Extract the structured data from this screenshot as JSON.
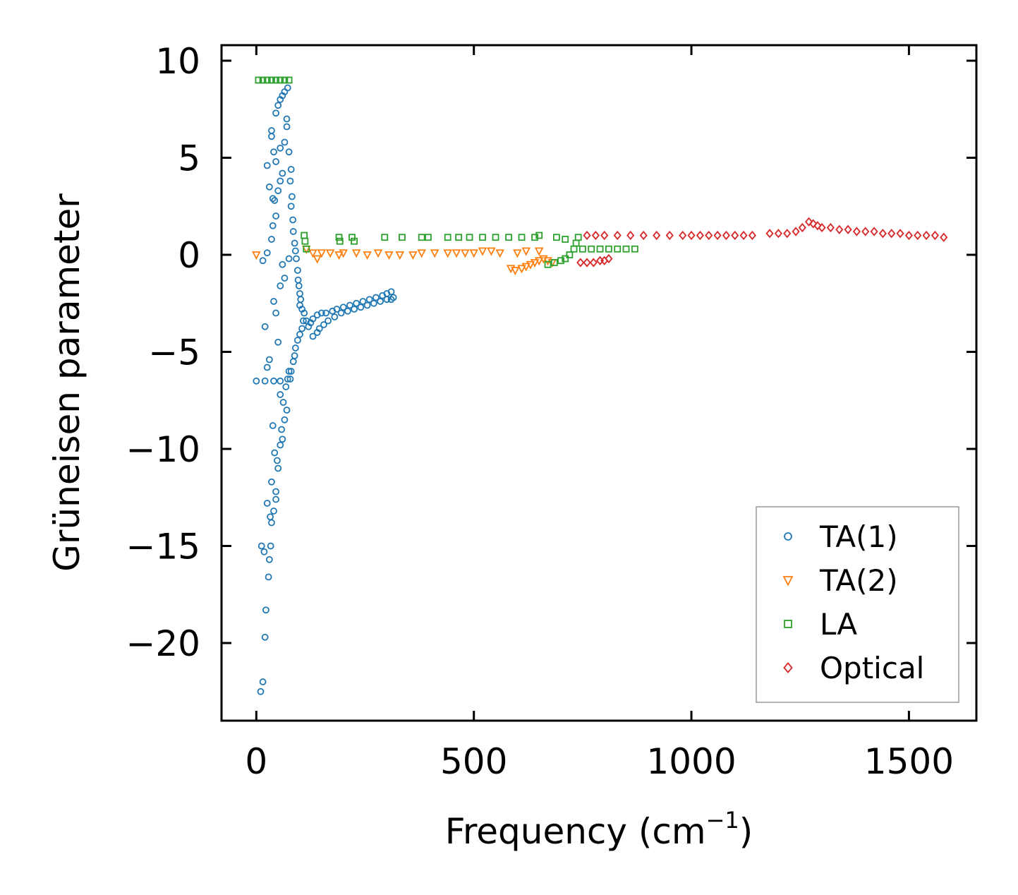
{
  "chart_data": {
    "type": "scatter",
    "xlabel": "Frequency (cm",
    "xlabel_sup": "−1",
    "xlabel_end": ")",
    "ylabel": "Grüneisen parameter",
    "xlim": [
      -80,
      1655
    ],
    "ylim": [
      -24,
      10.8
    ],
    "xticks": [
      0,
      500,
      1000,
      1500
    ],
    "xtick_labels": [
      "0",
      "500",
      "1000",
      "1500"
    ],
    "yticks": [
      10,
      5,
      0,
      -5,
      -10,
      -15,
      -20
    ],
    "ytick_labels": [
      "10",
      "5",
      "0",
      "−5",
      "−10",
      "−15",
      "−20"
    ],
    "legend_position": "lower-right",
    "series": [
      {
        "name": "TA(1)",
        "marker": "circle",
        "color": "#1f77b4",
        "points": [
          [
            0,
            -6.5
          ],
          [
            20,
            -6.5
          ],
          [
            40,
            -6.5
          ],
          [
            55,
            -6.5
          ],
          [
            10,
            -22.5
          ],
          [
            15,
            -22.0
          ],
          [
            20,
            -19.7
          ],
          [
            22,
            -18.3
          ],
          [
            28,
            -16.6
          ],
          [
            30,
            -15.7
          ],
          [
            33,
            -15.0
          ],
          [
            12,
            -15.0
          ],
          [
            18,
            -15.3
          ],
          [
            35,
            -13.8
          ],
          [
            32,
            -13.5
          ],
          [
            40,
            -13.2
          ],
          [
            25,
            -12.8
          ],
          [
            45,
            -12.6
          ],
          [
            45,
            -12.2
          ],
          [
            35,
            -11.7
          ],
          [
            50,
            -11.0
          ],
          [
            48,
            -10.6
          ],
          [
            42,
            -10.2
          ],
          [
            55,
            -9.8
          ],
          [
            60,
            -9.5
          ],
          [
            58,
            -9.0
          ],
          [
            38,
            -8.8
          ],
          [
            65,
            -8.5
          ],
          [
            70,
            -8.0
          ],
          [
            62,
            -7.6
          ],
          [
            55,
            -7.2
          ],
          [
            68,
            -6.8
          ],
          [
            72,
            -6.4
          ],
          [
            75,
            -6.0
          ],
          [
            25,
            -5.8
          ],
          [
            30,
            -5.4
          ],
          [
            20,
            -3.7
          ],
          [
            45,
            -3.0
          ],
          [
            40,
            -2.4
          ],
          [
            50,
            -4.5
          ],
          [
            55,
            -1.6
          ],
          [
            65,
            -1.2
          ],
          [
            60,
            -0.5
          ],
          [
            75,
            -0.2
          ],
          [
            15,
            -0.3
          ],
          [
            25,
            0.1
          ],
          [
            35,
            0.8
          ],
          [
            38,
            1.5
          ],
          [
            45,
            2.0
          ],
          [
            42,
            2.8
          ],
          [
            38,
            2.9
          ],
          [
            30,
            3.5
          ],
          [
            50,
            3.3
          ],
          [
            55,
            3.8
          ],
          [
            60,
            4.2
          ],
          [
            25,
            4.6
          ],
          [
            45,
            4.8
          ],
          [
            40,
            5.3
          ],
          [
            55,
            5.5
          ],
          [
            65,
            5.8
          ],
          [
            35,
            6.1
          ],
          [
            35,
            6.4
          ],
          [
            70,
            6.6
          ],
          [
            70,
            7.0
          ],
          [
            45,
            7.3
          ],
          [
            50,
            7.7
          ],
          [
            55,
            8.0
          ],
          [
            60,
            8.2
          ],
          [
            65,
            8.4
          ],
          [
            72,
            8.6
          ],
          [
            75,
            5.3
          ],
          [
            80,
            4.4
          ],
          [
            78,
            3.8
          ],
          [
            82,
            3.0
          ],
          [
            80,
            2.5
          ],
          [
            84,
            1.8
          ],
          [
            85,
            1.2
          ],
          [
            88,
            0.6
          ],
          [
            90,
            0.2
          ],
          [
            92,
            -0.2
          ],
          [
            95,
            -0.8
          ],
          [
            96,
            -1.3
          ],
          [
            98,
            -1.6
          ],
          [
            100,
            -2.0
          ],
          [
            102,
            -2.3
          ],
          [
            100,
            -2.6
          ],
          [
            105,
            -2.8
          ],
          [
            110,
            -3.0
          ],
          [
            108,
            -3.4
          ],
          [
            105,
            -3.8
          ],
          [
            100,
            -4.1
          ],
          [
            95,
            -4.4
          ],
          [
            90,
            -4.8
          ],
          [
            88,
            -5.2
          ],
          [
            85,
            -5.5
          ],
          [
            80,
            -6.0
          ],
          [
            78,
            -6.4
          ],
          [
            115,
            -3.4
          ],
          [
            120,
            -3.7
          ],
          [
            125,
            -3.5
          ],
          [
            130,
            -3.3
          ],
          [
            140,
            -3.1
          ],
          [
            150,
            -3.0
          ],
          [
            160,
            -3.0
          ],
          [
            175,
            -2.9
          ],
          [
            185,
            -2.8
          ],
          [
            200,
            -2.7
          ],
          [
            215,
            -2.6
          ],
          [
            230,
            -2.5
          ],
          [
            245,
            -2.4
          ],
          [
            260,
            -2.3
          ],
          [
            275,
            -2.2
          ],
          [
            290,
            -2.1
          ],
          [
            300,
            -2.0
          ],
          [
            310,
            -1.9
          ],
          [
            315,
            -2.2
          ],
          [
            130,
            -4.2
          ],
          [
            140,
            -4.0
          ],
          [
            145,
            -3.8
          ],
          [
            155,
            -3.6
          ],
          [
            165,
            -3.4
          ],
          [
            180,
            -3.2
          ],
          [
            195,
            -3.0
          ],
          [
            210,
            -2.9
          ],
          [
            225,
            -2.8
          ],
          [
            240,
            -2.7
          ],
          [
            255,
            -2.6
          ],
          [
            270,
            -2.5
          ],
          [
            285,
            -2.4
          ],
          [
            300,
            -2.3
          ],
          [
            310,
            -2.3
          ]
        ]
      },
      {
        "name": "TA(2)",
        "marker": "triangle-down",
        "color": "#ff7f0e",
        "points": [
          [
            0,
            0.0
          ],
          [
            115,
            0.3
          ],
          [
            130,
            0.1
          ],
          [
            140,
            -0.2
          ],
          [
            150,
            0.1
          ],
          [
            170,
            0.1
          ],
          [
            190,
            0.0
          ],
          [
            200,
            0.1
          ],
          [
            230,
            0.1
          ],
          [
            255,
            0.0
          ],
          [
            280,
            0.1
          ],
          [
            305,
            0.0
          ],
          [
            330,
            0.0
          ],
          [
            360,
            0.0
          ],
          [
            380,
            0.1
          ],
          [
            410,
            0.1
          ],
          [
            440,
            0.1
          ],
          [
            460,
            0.1
          ],
          [
            480,
            0.1
          ],
          [
            500,
            0.1
          ],
          [
            520,
            0.2
          ],
          [
            540,
            0.2
          ],
          [
            560,
            0.1
          ],
          [
            600,
            0.1
          ],
          [
            620,
            0.2
          ],
          [
            650,
            0.2
          ],
          [
            585,
            -0.7
          ],
          [
            595,
            -0.8
          ],
          [
            610,
            -0.7
          ],
          [
            620,
            -0.6
          ],
          [
            630,
            -0.5
          ],
          [
            640,
            -0.4
          ],
          [
            650,
            -0.3
          ],
          [
            660,
            -0.2
          ],
          [
            670,
            -0.3
          ],
          [
            680,
            -0.4
          ]
        ]
      },
      {
        "name": "LA",
        "marker": "square",
        "color": "#2ca02c",
        "points": [
          [
            5,
            9.0
          ],
          [
            15,
            9.0
          ],
          [
            25,
            9.0
          ],
          [
            35,
            9.0
          ],
          [
            45,
            9.0
          ],
          [
            55,
            9.0
          ],
          [
            65,
            9.0
          ],
          [
            75,
            9.0
          ],
          [
            110,
            1.0
          ],
          [
            112,
            0.7
          ],
          [
            115,
            0.3
          ],
          [
            190,
            0.9
          ],
          [
            192,
            0.7
          ],
          [
            220,
            0.9
          ],
          [
            225,
            0.7
          ],
          [
            295,
            0.9
          ],
          [
            335,
            0.9
          ],
          [
            380,
            0.9
          ],
          [
            395,
            0.9
          ],
          [
            440,
            0.9
          ],
          [
            465,
            0.9
          ],
          [
            490,
            0.9
          ],
          [
            520,
            0.9
          ],
          [
            550,
            0.9
          ],
          [
            580,
            0.9
          ],
          [
            610,
            0.9
          ],
          [
            640,
            0.9
          ],
          [
            650,
            1.0
          ],
          [
            690,
            0.9
          ],
          [
            710,
            0.8
          ],
          [
            670,
            -0.5
          ],
          [
            685,
            -0.4
          ],
          [
            700,
            -0.3
          ],
          [
            710,
            -0.2
          ],
          [
            720,
            0.0
          ],
          [
            730,
            0.3
          ],
          [
            735,
            0.6
          ],
          [
            740,
            0.9
          ],
          [
            750,
            0.3
          ],
          [
            770,
            0.3
          ],
          [
            790,
            0.3
          ],
          [
            810,
            0.3
          ],
          [
            830,
            0.3
          ],
          [
            850,
            0.3
          ],
          [
            870,
            0.3
          ]
        ]
      },
      {
        "name": "Optical",
        "marker": "diamond",
        "color": "#d62728",
        "points": [
          [
            745,
            -0.4
          ],
          [
            760,
            -0.4
          ],
          [
            775,
            -0.4
          ],
          [
            790,
            -0.3
          ],
          [
            800,
            -0.3
          ],
          [
            810,
            -0.2
          ],
          [
            760,
            1.0
          ],
          [
            780,
            1.0
          ],
          [
            800,
            1.0
          ],
          [
            830,
            1.0
          ],
          [
            860,
            1.0
          ],
          [
            890,
            1.0
          ],
          [
            920,
            1.0
          ],
          [
            950,
            1.0
          ],
          [
            980,
            1.0
          ],
          [
            1000,
            1.0
          ],
          [
            1020,
            1.0
          ],
          [
            1040,
            1.0
          ],
          [
            1060,
            1.0
          ],
          [
            1080,
            1.0
          ],
          [
            1100,
            1.0
          ],
          [
            1120,
            1.0
          ],
          [
            1140,
            1.0
          ],
          [
            1180,
            1.1
          ],
          [
            1200,
            1.1
          ],
          [
            1220,
            1.1
          ],
          [
            1240,
            1.2
          ],
          [
            1255,
            1.4
          ],
          [
            1270,
            1.7
          ],
          [
            1280,
            1.6
          ],
          [
            1290,
            1.5
          ],
          [
            1300,
            1.4
          ],
          [
            1320,
            1.4
          ],
          [
            1340,
            1.3
          ],
          [
            1360,
            1.3
          ],
          [
            1380,
            1.2
          ],
          [
            1400,
            1.2
          ],
          [
            1420,
            1.2
          ],
          [
            1440,
            1.1
          ],
          [
            1460,
            1.1
          ],
          [
            1480,
            1.1
          ],
          [
            1500,
            1.0
          ],
          [
            1520,
            1.0
          ],
          [
            1540,
            1.0
          ],
          [
            1560,
            1.0
          ],
          [
            1580,
            0.9
          ]
        ]
      }
    ]
  }
}
